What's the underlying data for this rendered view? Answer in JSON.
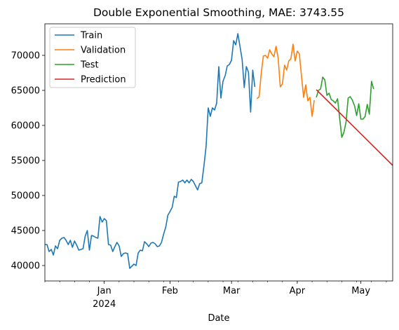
{
  "chart_data": {
    "type": "line",
    "title": "Double Exponential Smoothing, MAE: 3743.55",
    "xlabel": "Date",
    "ylabel": "",
    "xlim": [
      "2023-12-04",
      "2024-05-16"
    ],
    "ylim": [
      37800,
      74500
    ],
    "x_ticks": [
      {
        "date": "2024-01-01",
        "label": "Jan",
        "sublabel": "2024"
      },
      {
        "date": "2024-02-01",
        "label": "Feb",
        "sublabel": ""
      },
      {
        "date": "2024-03-01",
        "label": "Mar",
        "sublabel": ""
      },
      {
        "date": "2024-04-01",
        "label": "Apr",
        "sublabel": ""
      },
      {
        "date": "2024-05-01",
        "label": "May",
        "sublabel": ""
      }
    ],
    "y_ticks": [
      40000,
      45000,
      50000,
      55000,
      60000,
      65000,
      70000
    ],
    "grid": false,
    "legend_position": "upper-left",
    "series": [
      {
        "name": "Train",
        "color": "#1f77b4",
        "points": [
          [
            "2023-12-04",
            43000
          ],
          [
            "2023-12-05",
            43000
          ],
          [
            "2023-12-06",
            42000
          ],
          [
            "2023-12-07",
            42300
          ],
          [
            "2023-12-08",
            41500
          ],
          [
            "2023-12-09",
            42800
          ],
          [
            "2023-12-10",
            42400
          ],
          [
            "2023-12-11",
            43600
          ],
          [
            "2023-12-12",
            43900
          ],
          [
            "2023-12-13",
            44000
          ],
          [
            "2023-12-14",
            43600
          ],
          [
            "2023-12-15",
            43000
          ],
          [
            "2023-12-16",
            43600
          ],
          [
            "2023-12-17",
            42600
          ],
          [
            "2023-12-18",
            43500
          ],
          [
            "2023-12-19",
            42900
          ],
          [
            "2023-12-20",
            42200
          ],
          [
            "2023-12-21",
            42300
          ],
          [
            "2023-12-22",
            42400
          ],
          [
            "2023-12-23",
            44200
          ],
          [
            "2023-12-24",
            45000
          ],
          [
            "2023-12-25",
            42200
          ],
          [
            "2023-12-26",
            44300
          ],
          [
            "2023-12-27",
            44200
          ],
          [
            "2023-12-28",
            44000
          ],
          [
            "2023-12-29",
            43900
          ],
          [
            "2023-12-30",
            47000
          ],
          [
            "2023-12-31",
            46200
          ],
          [
            "2024-01-01",
            46700
          ],
          [
            "2024-01-02",
            46400
          ],
          [
            "2024-01-03",
            43000
          ],
          [
            "2024-01-04",
            42900
          ],
          [
            "2024-01-05",
            42000
          ],
          [
            "2024-01-06",
            42700
          ],
          [
            "2024-01-07",
            43300
          ],
          [
            "2024-01-08",
            42800
          ],
          [
            "2024-01-09",
            41300
          ],
          [
            "2024-01-10",
            41700
          ],
          [
            "2024-01-11",
            41800
          ],
          [
            "2024-01-12",
            41700
          ],
          [
            "2024-01-13",
            39600
          ],
          [
            "2024-01-14",
            39900
          ],
          [
            "2024-01-15",
            40200
          ],
          [
            "2024-01-16",
            40000
          ],
          [
            "2024-01-17",
            41800
          ],
          [
            "2024-01-18",
            42200
          ],
          [
            "2024-01-19",
            42100
          ],
          [
            "2024-01-20",
            43400
          ],
          [
            "2024-01-21",
            43100
          ],
          [
            "2024-01-22",
            42700
          ],
          [
            "2024-01-23",
            43200
          ],
          [
            "2024-01-24",
            43300
          ],
          [
            "2024-01-25",
            43100
          ],
          [
            "2024-01-26",
            42700
          ],
          [
            "2024-01-27",
            42800
          ],
          [
            "2024-01-28",
            43300
          ],
          [
            "2024-01-29",
            44500
          ],
          [
            "2024-01-30",
            45500
          ],
          [
            "2024-01-31",
            47200
          ],
          [
            "2024-02-01",
            47700
          ],
          [
            "2024-02-02",
            48300
          ],
          [
            "2024-02-03",
            49900
          ],
          [
            "2024-02-04",
            49700
          ],
          [
            "2024-02-05",
            51900
          ],
          [
            "2024-02-06",
            52000
          ],
          [
            "2024-02-07",
            52200
          ],
          [
            "2024-02-08",
            51800
          ],
          [
            "2024-02-09",
            52200
          ],
          [
            "2024-02-10",
            51800
          ],
          [
            "2024-02-11",
            52300
          ],
          [
            "2024-02-12",
            52000
          ],
          [
            "2024-02-13",
            51400
          ],
          [
            "2024-02-14",
            50800
          ],
          [
            "2024-02-15",
            51700
          ],
          [
            "2024-02-16",
            51800
          ],
          [
            "2024-02-17",
            54200
          ],
          [
            "2024-02-18",
            57000
          ],
          [
            "2024-02-19",
            62500
          ],
          [
            "2024-02-20",
            61300
          ],
          [
            "2024-02-21",
            62500
          ],
          [
            "2024-02-22",
            62200
          ],
          [
            "2024-02-23",
            63200
          ],
          [
            "2024-02-24",
            68400
          ],
          [
            "2024-02-25",
            63900
          ],
          [
            "2024-02-26",
            66300
          ],
          [
            "2024-02-27",
            67100
          ],
          [
            "2024-02-28",
            68500
          ],
          [
            "2024-02-29",
            68700
          ],
          [
            "2024-03-01",
            69300
          ],
          [
            "2024-03-02",
            72100
          ],
          [
            "2024-03-03",
            71500
          ],
          [
            "2024-03-04",
            73100
          ],
          [
            "2024-03-05",
            71300
          ],
          [
            "2024-03-06",
            69400
          ],
          [
            "2024-03-07",
            65400
          ],
          [
            "2024-03-08",
            68400
          ],
          [
            "2024-03-09",
            67600
          ],
          [
            "2024-03-10",
            61900
          ],
          [
            "2024-03-11",
            67900
          ],
          [
            "2024-03-12",
            65500
          ]
        ]
      },
      {
        "name": "Validation",
        "color": "#ff7f0e",
        "points": [
          [
            "2024-03-13",
            63800
          ],
          [
            "2024-03-14",
            64100
          ],
          [
            "2024-03-15",
            67400
          ],
          [
            "2024-03-16",
            69900
          ],
          [
            "2024-03-17",
            70000
          ],
          [
            "2024-03-18",
            69600
          ],
          [
            "2024-03-19",
            70800
          ],
          [
            "2024-03-20",
            70200
          ],
          [
            "2024-03-21",
            69800
          ],
          [
            "2024-03-22",
            71300
          ],
          [
            "2024-03-23",
            69600
          ],
          [
            "2024-03-24",
            65500
          ],
          [
            "2024-03-25",
            65900
          ],
          [
            "2024-03-26",
            68600
          ],
          [
            "2024-03-27",
            67900
          ],
          [
            "2024-03-28",
            69200
          ],
          [
            "2024-03-29",
            69500
          ],
          [
            "2024-03-30",
            71600
          ],
          [
            "2024-03-31",
            69200
          ],
          [
            "2024-04-01",
            70600
          ],
          [
            "2024-04-02",
            70200
          ],
          [
            "2024-04-03",
            67000
          ],
          [
            "2024-04-04",
            64000
          ],
          [
            "2024-04-05",
            65800
          ],
          [
            "2024-04-06",
            63500
          ],
          [
            "2024-04-07",
            64000
          ],
          [
            "2024-04-08",
            61300
          ],
          [
            "2024-04-09",
            63600
          ]
        ]
      },
      {
        "name": "Test",
        "color": "#2ca02c",
        "points": [
          [
            "2024-04-10",
            64000
          ],
          [
            "2024-04-11",
            65000
          ],
          [
            "2024-04-12",
            65200
          ],
          [
            "2024-04-13",
            66900
          ],
          [
            "2024-04-14",
            66500
          ],
          [
            "2024-04-15",
            64300
          ],
          [
            "2024-04-16",
            64600
          ],
          [
            "2024-04-17",
            63700
          ],
          [
            "2024-04-18",
            63500
          ],
          [
            "2024-04-19",
            63200
          ],
          [
            "2024-04-20",
            63800
          ],
          [
            "2024-04-21",
            61000
          ],
          [
            "2024-04-22",
            58300
          ],
          [
            "2024-04-23",
            59000
          ],
          [
            "2024-04-24",
            60500
          ],
          [
            "2024-04-25",
            63900
          ],
          [
            "2024-04-26",
            64100
          ],
          [
            "2024-04-27",
            63600
          ],
          [
            "2024-04-28",
            62800
          ],
          [
            "2024-04-29",
            61400
          ],
          [
            "2024-04-30",
            63100
          ],
          [
            "2024-05-01",
            60900
          ],
          [
            "2024-05-02",
            60900
          ],
          [
            "2024-05-03",
            61300
          ],
          [
            "2024-05-04",
            63000
          ],
          [
            "2024-05-05",
            61600
          ],
          [
            "2024-05-06",
            66300
          ],
          [
            "2024-05-07",
            65200
          ]
        ]
      },
      {
        "name": "Prediction",
        "color": "#d62728",
        "points": [
          [
            "2024-04-10",
            65100
          ],
          [
            "2024-05-16",
            54300
          ]
        ]
      }
    ]
  }
}
